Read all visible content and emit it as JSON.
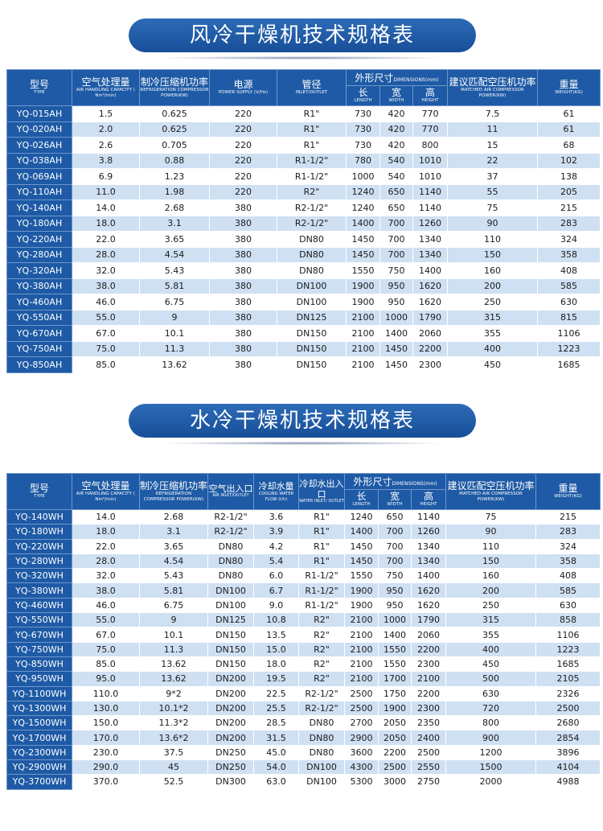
{
  "air_cooled": {
    "title": "风冷干燥机技术规格表",
    "headers": {
      "type": {
        "zh": "型号",
        "en": "TYPE"
      },
      "capacity": {
        "zh": "空气处理量",
        "en": "AIR HANDLING CAPACITY ( Nm³/min)"
      },
      "ref_power": {
        "zh": "制冷压缩机功率",
        "en": "REFRIGERATION COMPRESSOR POWER(KW)"
      },
      "power_supply": {
        "zh": "电源",
        "en": "POWER SUPPLY (V/Hz)"
      },
      "pipe": {
        "zh": "管径",
        "en": "INLET/OUTLET"
      },
      "dimensions": {
        "zh": "外形尺寸",
        "en": "DIMENSIONS(mm)"
      },
      "length": {
        "zh": "长",
        "en": "LENGTH"
      },
      "width": {
        "zh": "宽",
        "en": "WIDTH"
      },
      "height": {
        "zh": "高",
        "en": "HEIGHT"
      },
      "matched_power": {
        "zh": "建议匹配空压机功率",
        "en": "MATCHED AIR COMPRESSOR POWER(KW)"
      },
      "weight": {
        "zh": "重量",
        "en": "WEIGHT(KG)"
      }
    },
    "rows": [
      [
        "YQ-015AH",
        "1.5",
        "0.625",
        "220",
        "R1\"",
        "730",
        "420",
        "770",
        "7.5",
        "61"
      ],
      [
        "YQ-020AH",
        "2.0",
        "0.625",
        "220",
        "R1\"",
        "730",
        "420",
        "770",
        "11",
        "61"
      ],
      [
        "YQ-026AH",
        "2.6",
        "0.705",
        "220",
        "R1\"",
        "730",
        "420",
        "800",
        "15",
        "68"
      ],
      [
        "YQ-038AH",
        "3.8",
        "0.88",
        "220",
        "R1-1/2\"",
        "780",
        "540",
        "1010",
        "22",
        "102"
      ],
      [
        "YQ-069AH",
        "6.9",
        "1.23",
        "220",
        "R1-1/2\"",
        "1000",
        "540",
        "1010",
        "37",
        "138"
      ],
      [
        "YQ-110AH",
        "11.0",
        "1.98",
        "220",
        "R2\"",
        "1240",
        "650",
        "1140",
        "55",
        "205"
      ],
      [
        "YQ-140AH",
        "14.0",
        "2.68",
        "380",
        "R2-1/2\"",
        "1240",
        "650",
        "1140",
        "75",
        "215"
      ],
      [
        "YQ-180AH",
        "18.0",
        "3.1",
        "380",
        "R2-1/2\"",
        "1400",
        "700",
        "1260",
        "90",
        "283"
      ],
      [
        "YQ-220AH",
        "22.0",
        "3.65",
        "380",
        "DN80",
        "1450",
        "700",
        "1340",
        "110",
        "324"
      ],
      [
        "YQ-280AH",
        "28.0",
        "4.54",
        "380",
        "DN80",
        "1450",
        "700",
        "1340",
        "150",
        "358"
      ],
      [
        "YQ-320AH",
        "32.0",
        "5.43",
        "380",
        "DN80",
        "1550",
        "750",
        "1400",
        "160",
        "408"
      ],
      [
        "YQ-380AH",
        "38.0",
        "5.81",
        "380",
        "DN100",
        "1900",
        "950",
        "1620",
        "200",
        "585"
      ],
      [
        "YQ-460AH",
        "46.0",
        "6.75",
        "380",
        "DN100",
        "1900",
        "950",
        "1620",
        "250",
        "630"
      ],
      [
        "YQ-550AH",
        "55.0",
        "9",
        "380",
        "DN125",
        "2100",
        "1000",
        "1790",
        "315",
        "815"
      ],
      [
        "YQ-670AH",
        "67.0",
        "10.1",
        "380",
        "DN150",
        "2100",
        "1400",
        "2060",
        "355",
        "1106"
      ],
      [
        "YQ-750AH",
        "75.0",
        "11.3",
        "380",
        "DN150",
        "2100",
        "1450",
        "2200",
        "400",
        "1223"
      ],
      [
        "YQ-850AH",
        "85.0",
        "13.62",
        "380",
        "DN150",
        "2100",
        "1450",
        "2300",
        "450",
        "1685"
      ]
    ]
  },
  "water_cooled": {
    "title": "水冷干燥机技术规格表",
    "headers": {
      "type": {
        "zh": "型号",
        "en": "TYPE"
      },
      "capacity": {
        "zh": "空气处理量",
        "en": "AIR HANDLING CAPACITY ( Nm³/min)"
      },
      "ref_power": {
        "zh": "制冷压缩机功率",
        "en": "REFRIGERATION COMPRESSOR POWER(KW)"
      },
      "air_io": {
        "zh": "空气出入口",
        "en": "AIR INLET/OUTLET"
      },
      "water_flow": {
        "zh": "冷却水量",
        "en": "COOLING WATER FLOW (t/h)"
      },
      "water_io": {
        "zh": "冷却水出入口",
        "en": "WATER INLET/ OUTLET"
      },
      "dimensions": {
        "zh": "外形尺寸",
        "en": "DIMENSIONS(mm)"
      },
      "length": {
        "zh": "长",
        "en": "LENGTH"
      },
      "width": {
        "zh": "宽",
        "en": "WIDTH"
      },
      "height": {
        "zh": "高",
        "en": "HEIGHT"
      },
      "matched_power": {
        "zh": "建议匹配空压机功率",
        "en": "MATCHED AIR COMPRESSOR POWER(KW)"
      },
      "weight": {
        "zh": "重量",
        "en": "WEIGHT(KG)"
      }
    },
    "rows": [
      [
        "YQ-140WH",
        "14.0",
        "2.68",
        "R2-1/2\"",
        "3.6",
        "R1\"",
        "1240",
        "650",
        "1140",
        "75",
        "215"
      ],
      [
        "YQ-180WH",
        "18.0",
        "3.1",
        "R2-1/2\"",
        "3.9",
        "R1\"",
        "1400",
        "700",
        "1260",
        "90",
        "283"
      ],
      [
        "YQ-220WH",
        "22.0",
        "3.65",
        "DN80",
        "4.2",
        "R1\"",
        "1450",
        "700",
        "1340",
        "110",
        "324"
      ],
      [
        "YQ-280WH",
        "28.0",
        "4.54",
        "DN80",
        "5.4",
        "R1\"",
        "1450",
        "700",
        "1340",
        "150",
        "358"
      ],
      [
        "YQ-320WH",
        "32.0",
        "5.43",
        "DN80",
        "6.0",
        "R1-1/2\"",
        "1550",
        "750",
        "1400",
        "160",
        "408"
      ],
      [
        "YQ-380WH",
        "38.0",
        "5.81",
        "DN100",
        "6.7",
        "R1-1/2\"",
        "1900",
        "950",
        "1620",
        "200",
        "585"
      ],
      [
        "YQ-460WH",
        "46.0",
        "6.75",
        "DN100",
        "9.0",
        "R1-1/2\"",
        "1900",
        "950",
        "1620",
        "250",
        "630"
      ],
      [
        "YQ-550WH",
        "55.0",
        "9",
        "DN125",
        "10.8",
        "R2\"",
        "2100",
        "1000",
        "1790",
        "315",
        "858"
      ],
      [
        "YQ-670WH",
        "67.0",
        "10.1",
        "DN150",
        "13.5",
        "R2\"",
        "2100",
        "1400",
        "2060",
        "355",
        "1106"
      ],
      [
        "YQ-750WH",
        "75.0",
        "11.3",
        "DN150",
        "15.0",
        "R2\"",
        "2100",
        "1550",
        "2200",
        "400",
        "1223"
      ],
      [
        "YQ-850WH",
        "85.0",
        "13.62",
        "DN150",
        "18.0",
        "R2\"",
        "2100",
        "1550",
        "2300",
        "450",
        "1685"
      ],
      [
        "YQ-950WH",
        "95.0",
        "13.62",
        "DN200",
        "19.5",
        "R2\"",
        "2100",
        "1700",
        "2100",
        "500",
        "2105"
      ],
      [
        "YQ-1100WH",
        "110.0",
        "9*2",
        "DN200",
        "22.5",
        "R2-1/2\"",
        "2500",
        "1750",
        "2200",
        "630",
        "2326"
      ],
      [
        "YQ-1300WH",
        "130.0",
        "10.1*2",
        "DN200",
        "25.5",
        "R2-1/2\"",
        "2500",
        "1900",
        "2300",
        "720",
        "2500"
      ],
      [
        "YQ-1500WH",
        "150.0",
        "11.3*2",
        "DN200",
        "28.5",
        "DN80",
        "2700",
        "2050",
        "2350",
        "800",
        "2680"
      ],
      [
        "YQ-1700WH",
        "170.0",
        "13.6*2",
        "DN200",
        "31.5",
        "DN80",
        "2900",
        "2050",
        "2400",
        "900",
        "2854"
      ],
      [
        "YQ-2300WH",
        "230.0",
        "37.5",
        "DN250",
        "45.0",
        "DN80",
        "3600",
        "2200",
        "2500",
        "1200",
        "3896"
      ],
      [
        "YQ-2900WH",
        "290.0",
        "45",
        "DN250",
        "54.0",
        "DN100",
        "4300",
        "2500",
        "2550",
        "1500",
        "4104"
      ],
      [
        "YQ-3700WH",
        "370.0",
        "52.5",
        "DN300",
        "63.0",
        "DN100",
        "5300",
        "3000",
        "2750",
        "2000",
        "4988"
      ]
    ]
  },
  "colors": {
    "header": "#1e5aa5",
    "stripe": "#cfe0f3",
    "title_pill": "#1f5aa3"
  }
}
